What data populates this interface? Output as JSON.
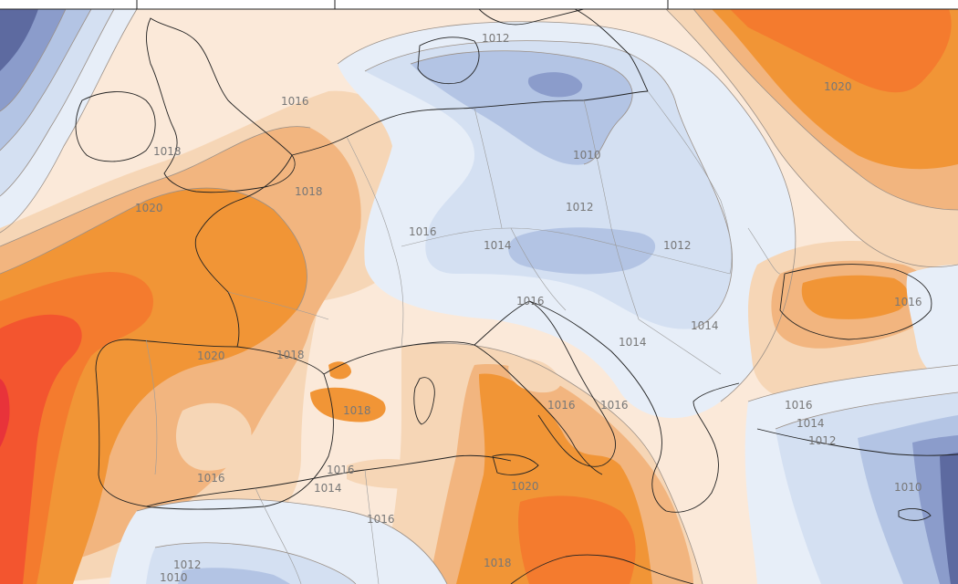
{
  "map": {
    "colors": {
      "deep_low": "#5d6aa0",
      "low_2": "#8b9ccb",
      "low_3": "#b3c4e4",
      "low_4": "#d4e0f2",
      "low_5": "#e7eef8",
      "neutral": "#fbe9d9",
      "high_1": "#f6d6b6",
      "high_2": "#f2b57f",
      "high_3": "#f19536",
      "high_4": "#f47b2e",
      "high_5": "#f3552f",
      "high_6": "#e8333a",
      "coast": "#222222",
      "border": "#9a9a9a",
      "isobar": "#9a8f86"
    },
    "isobar_labels": [
      {
        "name": "label-1012-north",
        "text": "1012"
      },
      {
        "name": "label-1016-n",
        "text": "1016"
      },
      {
        "name": "label-1020-ne",
        "text": "1020"
      },
      {
        "name": "label-1018-ireland",
        "text": "1018"
      },
      {
        "name": "label-1018-channel",
        "text": "1018"
      },
      {
        "name": "label-1020-biscay",
        "text": "1020"
      },
      {
        "name": "label-1010-poland",
        "text": "1010"
      },
      {
        "name": "label-1012-czech",
        "text": "1012"
      },
      {
        "name": "label-1016-germany",
        "text": "1016"
      },
      {
        "name": "label-1014-germany",
        "text": "1014"
      },
      {
        "name": "label-1012-ukraine",
        "text": "1012"
      },
      {
        "name": "label-1016-black-sea",
        "text": "1016"
      },
      {
        "name": "label-1016-alps",
        "text": "1016"
      },
      {
        "name": "label-1014-balkan",
        "text": "1014"
      },
      {
        "name": "label-1014-romania",
        "text": "1014"
      },
      {
        "name": "label-1020-iberia",
        "text": "1020"
      },
      {
        "name": "label-1018-iberia",
        "text": "1018"
      },
      {
        "name": "label-1018-spain",
        "text": "1018"
      },
      {
        "name": "label-1016-adriatic",
        "text": "1016"
      },
      {
        "name": "label-1016-greece",
        "text": "1016"
      },
      {
        "name": "label-1016-aegean",
        "text": "1016"
      },
      {
        "name": "label-1014-turkey",
        "text": "1014"
      },
      {
        "name": "label-1012-turkey",
        "text": "1012"
      },
      {
        "name": "label-1010-east",
        "text": "1010"
      },
      {
        "name": "label-1016-andalusia",
        "text": "1016"
      },
      {
        "name": "label-1016-algeria",
        "text": "1016"
      },
      {
        "name": "label-1014-algeria",
        "text": "1014"
      },
      {
        "name": "label-1020-ionian",
        "text": "1020"
      },
      {
        "name": "label-1016-sahara",
        "text": "1016"
      },
      {
        "name": "label-1012-sw",
        "text": "1012"
      },
      {
        "name": "label-1010-sw",
        "text": "1010"
      },
      {
        "name": "label-1018-libya",
        "text": "1018"
      }
    ]
  }
}
